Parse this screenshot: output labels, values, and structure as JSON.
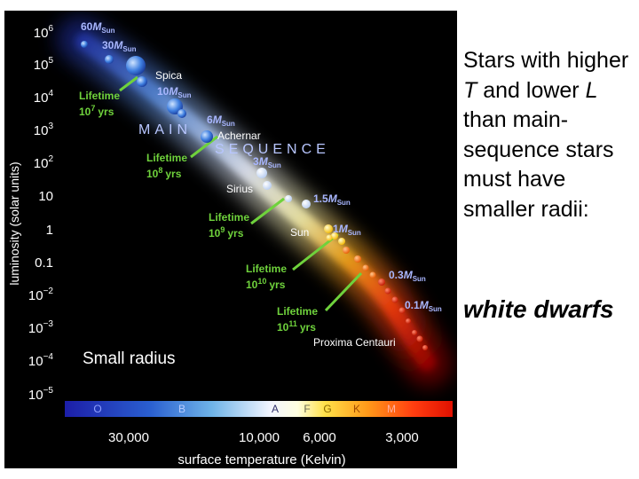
{
  "hr_diagram": {
    "y_axis_label": "luminosity (solar units)",
    "x_axis_label": "surface temperature (Kelvin)",
    "y_ticks": [
      {
        "value": "10^6",
        "base": "10",
        "exp": "6"
      },
      {
        "value": "10^5",
        "base": "10",
        "exp": "5"
      },
      {
        "value": "10^4",
        "base": "10",
        "exp": "4"
      },
      {
        "value": "10^3",
        "base": "10",
        "exp": "3"
      },
      {
        "value": "10^2",
        "base": "10",
        "exp": "2"
      },
      {
        "value": "10",
        "base": "10",
        "exp": ""
      },
      {
        "value": "1",
        "base": "1",
        "exp": ""
      },
      {
        "value": "0.1",
        "base": "0.1",
        "exp": ""
      },
      {
        "value": "10^-2",
        "base": "10",
        "exp": "−2"
      },
      {
        "value": "10^-3",
        "base": "10",
        "exp": "−3"
      },
      {
        "value": "10^-4",
        "base": "10",
        "exp": "−4"
      },
      {
        "value": "10^-5",
        "base": "10",
        "exp": "−5"
      }
    ],
    "x_ticks": [
      "30,000",
      "10,000",
      "6,000",
      "3,000"
    ],
    "spectral_classes": [
      "O",
      "B",
      "A",
      "F",
      "G",
      "K",
      "M"
    ],
    "main_sequence_word1": "MAIN",
    "main_sequence_word2": "SEQUENCE",
    "mass_labels": [
      {
        "num": "60",
        "unit": "M",
        "sub": "Sun"
      },
      {
        "num": "30",
        "unit": "M",
        "sub": "Sun"
      },
      {
        "num": "10",
        "unit": "M",
        "sub": "Sun"
      },
      {
        "num": "6",
        "unit": "M",
        "sub": "Sun"
      },
      {
        "num": "3",
        "unit": "M",
        "sub": "Sun"
      },
      {
        "num": "1.5",
        "unit": "M",
        "sub": "Sun"
      },
      {
        "num": "1",
        "unit": "M",
        "sub": "Sun"
      },
      {
        "num": "0.3",
        "unit": "M",
        "sub": "Sun"
      },
      {
        "num": "0.1",
        "unit": "M",
        "sub": "Sun"
      }
    ],
    "lifetimes": [
      {
        "word": "Lifetime",
        "base": "10",
        "exp": "7",
        "unit": "yrs"
      },
      {
        "word": "Lifetime",
        "base": "10",
        "exp": "8",
        "unit": "yrs"
      },
      {
        "word": "Lifetime",
        "base": "10",
        "exp": "9",
        "unit": "yrs"
      },
      {
        "word": "Lifetime",
        "base": "10",
        "exp": "10",
        "unit": "yrs"
      },
      {
        "word": "Lifetime",
        "base": "10",
        "exp": "11",
        "unit": "yrs"
      }
    ],
    "star_names": [
      "Spica",
      "Achernar",
      "Sirius",
      "Sun",
      "Proxima Centauri"
    ],
    "small_radius_label": "Small radius"
  },
  "side_text": {
    "part1": "Stars with higher ",
    "T": "T",
    "part2": " and lower ",
    "L": "L",
    "part3": " than main-sequence stars must have smaller radii:"
  },
  "conclusion": "white dwarfs",
  "colors": {
    "background": "#000000",
    "lifetime_green": "#6fd23c",
    "mass_label": "#a9b7ff",
    "main_sequence_text": "#b8c6ff"
  }
}
